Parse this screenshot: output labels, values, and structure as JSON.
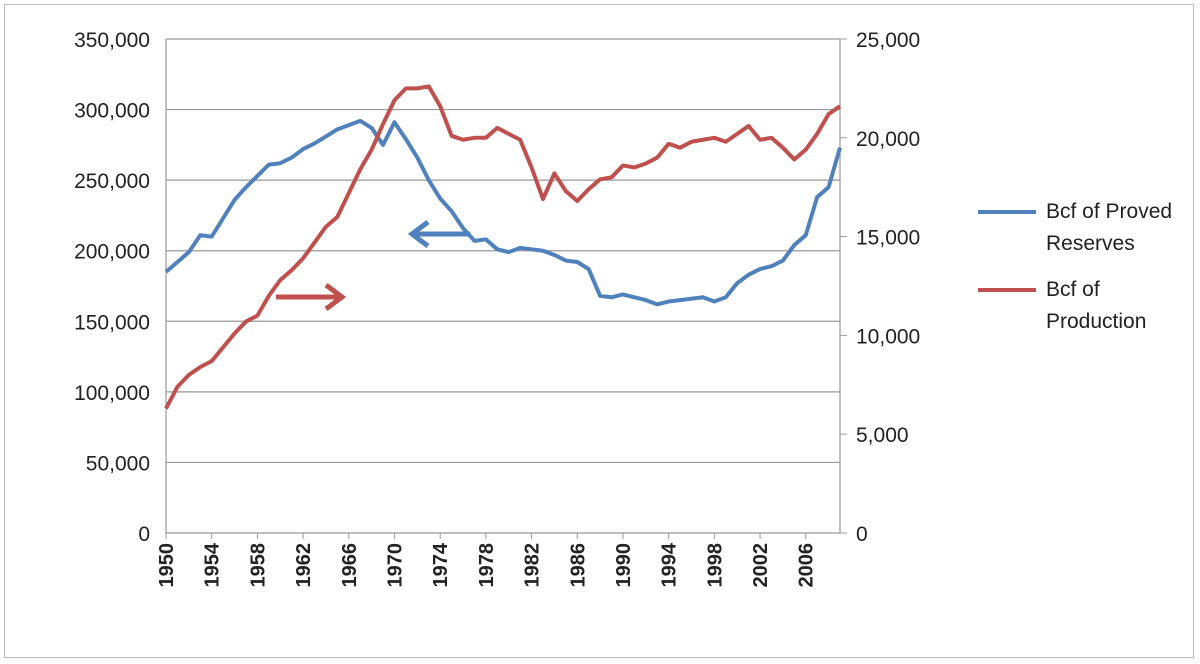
{
  "chart_data": {
    "type": "line",
    "categories": [
      "1950",
      null,
      null,
      null,
      "1954",
      null,
      null,
      null,
      "1958",
      null,
      null,
      null,
      "1962",
      null,
      null,
      null,
      "1966",
      null,
      null,
      null,
      "1970",
      null,
      null,
      null,
      "1974",
      null,
      null,
      null,
      "1978",
      null,
      null,
      null,
      "1982",
      null,
      null,
      null,
      "1986",
      null,
      null,
      null,
      "1990",
      null,
      null,
      null,
      "1994",
      null,
      null,
      null,
      "1998",
      null,
      null,
      null,
      "2002",
      null,
      null,
      null,
      "2006",
      null,
      null,
      null
    ],
    "series": [
      {
        "name": "Bcf of Proved Reserves",
        "color": "#4f81bd",
        "axis": "y",
        "values": [
          185000,
          192000,
          199000,
          211000,
          210000,
          223000,
          236000,
          245000,
          253000,
          261000,
          262000,
          266000,
          272000,
          276000,
          281000,
          286000,
          289000,
          292000,
          287000,
          275000,
          291000,
          279000,
          266000,
          250000,
          237000,
          228000,
          216000,
          207000,
          208000,
          201000,
          199000,
          202000,
          201000,
          200000,
          197000,
          193000,
          192000,
          187000,
          168000,
          167000,
          169000,
          167000,
          165000,
          162000,
          164000,
          165000,
          166000,
          167000,
          164000,
          167000,
          177000,
          183000,
          187000,
          189000,
          193000,
          204000,
          211000,
          238000,
          245000,
          273000
        ]
      },
      {
        "name": "Bcf of Production",
        "color": "#c0504d",
        "axis": "y2",
        "values": [
          6300,
          7400,
          8000,
          8400,
          8700,
          9400,
          10100,
          10700,
          11000,
          12000,
          12800,
          13300,
          13900,
          14700,
          15500,
          16000,
          17200,
          18400,
          19400,
          20700,
          21900,
          22500,
          22500,
          22600,
          21600,
          20100,
          19900,
          20000,
          20000,
          20500,
          20200,
          19900,
          18500,
          16900,
          18200,
          17300,
          16800,
          17400,
          17900,
          18000,
          18600,
          18500,
          18700,
          19000,
          19700,
          19500,
          19800,
          19900,
          20000,
          19800,
          20200,
          20600,
          19900,
          20000,
          19500,
          18900,
          19400,
          20200,
          21200,
          21600
        ]
      }
    ],
    "ylim": [
      0,
      350000
    ],
    "yticks": [
      0,
      {
        "value": 50000,
        "label": "50,000"
      },
      {
        "value": 100000,
        "label": "100,000"
      },
      {
        "value": 150000,
        "label": "150,000"
      },
      {
        "value": 200000,
        "label": "200,000"
      },
      {
        "value": 250000,
        "label": "250,000"
      },
      {
        "value": 300000,
        "label": "300,000"
      },
      {
        "value": 350000,
        "label": "350,000"
      }
    ],
    "y2lim": [
      0,
      25000
    ],
    "y2ticks": [
      0,
      {
        "value": 5000,
        "label": "5,000"
      },
      {
        "value": 10000,
        "label": "10,000"
      },
      {
        "value": 15000,
        "label": "15,000"
      },
      {
        "value": 20000,
        "label": "20,000"
      },
      {
        "value": 25000,
        "label": "25,000"
      }
    ],
    "grid": true,
    "legend": "right"
  }
}
